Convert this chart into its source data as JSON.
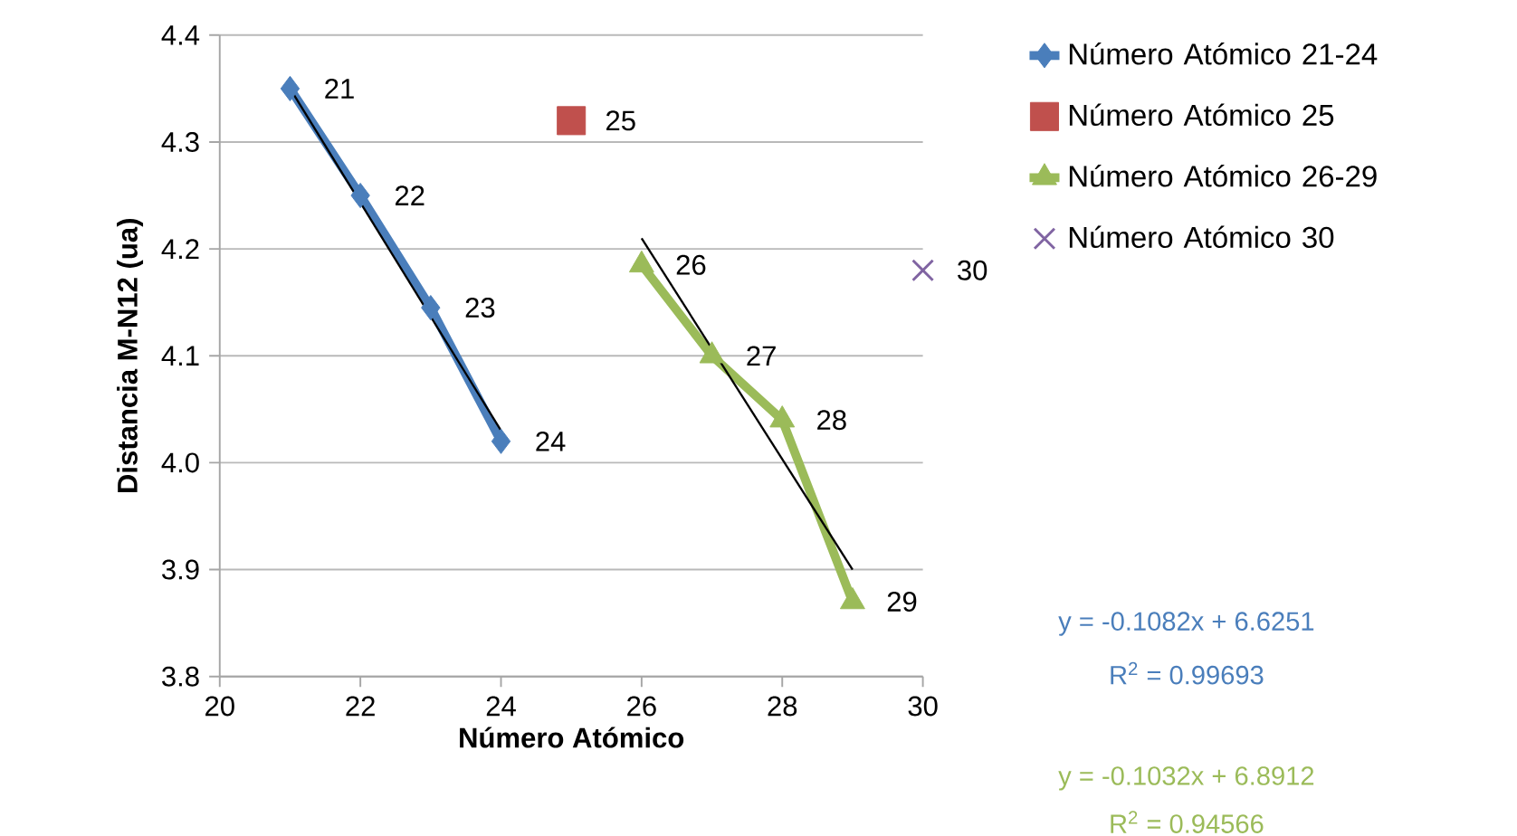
{
  "chart_data": {
    "type": "line",
    "xlabel": "Número Atómico",
    "ylabel": "Distancia M-N12 (ua)",
    "xlim": [
      20,
      30
    ],
    "xticks": [
      20,
      22,
      24,
      26,
      28,
      30
    ],
    "ylim": [
      3.8,
      4.4
    ],
    "yticks": [
      3.8,
      3.9,
      {
        "value": 4.0,
        "label": "4.0"
      },
      4.1,
      4.2,
      4.3,
      4.4
    ],
    "grid": "y",
    "legend": "right",
    "series": [
      {
        "name": "Número Atómico 21-24",
        "marker": "diamond",
        "color": "#4a7ebb",
        "x": [
          21,
          22,
          23,
          24
        ],
        "values": [
          4.35,
          4.25,
          4.145,
          4.02
        ]
      },
      {
        "name": "Número Atómico 25",
        "type": "scatter",
        "marker": "square",
        "color": "#c0504d",
        "x": [
          25
        ],
        "values": [
          4.32
        ]
      },
      {
        "name": "Número Atómico 26-29",
        "marker": "triangle",
        "color": "#9bbb59",
        "x": [
          26,
          27,
          28,
          29
        ],
        "values": [
          4.185,
          4.1,
          4.04,
          3.87
        ]
      },
      {
        "name": "Número Atómico 30",
        "type": "scatter",
        "marker": "cross",
        "color": "#8064a2",
        "x": [
          30
        ],
        "values": [
          4.18
        ]
      },
      {
        "marker": "none",
        "color": "#000000",
        "x": [
          21,
          24
        ],
        "values": [
          4.35,
          4.03
        ]
      },
      {
        "marker": "none",
        "color": "#000000",
        "x": [
          26,
          29
        ],
        "values": [
          4.21,
          3.9
        ]
      }
    ],
    "annotations": [
      {
        "text": "21",
        "x": 21,
        "y": 4.35
      },
      {
        "text": "22",
        "x": 22,
        "y": 4.25
      },
      {
        "text": "23",
        "x": 23,
        "y": 4.145
      },
      {
        "text": "24",
        "x": 24,
        "y": 4.02
      },
      {
        "text": "25",
        "x": 25,
        "y": 4.32
      },
      {
        "text": "26",
        "x": 26,
        "y": 4.185
      },
      {
        "text": "27",
        "x": 27,
        "y": 4.1
      },
      {
        "text": "28",
        "x": 28,
        "y": 4.04
      },
      {
        "text": "29",
        "x": 29,
        "y": 3.87
      },
      {
        "text": "30",
        "x": 30,
        "y": 4.18
      },
      "y = -0.1082x + 6.6251",
      "R$^{2}$ = 0.99693",
      "y = -0.1032x + 6.8912",
      "R$^{2}$ = 0.94566"
    ]
  }
}
